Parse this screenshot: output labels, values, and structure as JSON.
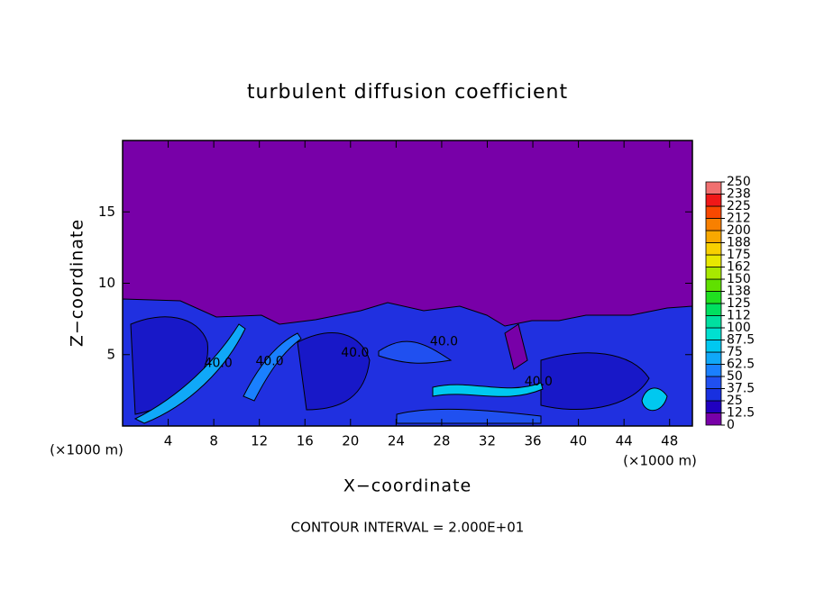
{
  "chart_data": {
    "type": "contour",
    "title": "turbulent diffusion coefficient",
    "x_label": "X−coordinate",
    "y_label": "Z−coordinate",
    "x_unit_left": "(×1000 m)",
    "x_unit_right": "(×1000 m)",
    "footer": "CONTOUR INTERVAL = 2.000E+01",
    "xlim": [
      0,
      50
    ],
    "ylim": [
      0,
      20
    ],
    "xticks": [
      4,
      8,
      12,
      16,
      20,
      24,
      28,
      32,
      36,
      40,
      44,
      48
    ],
    "yticks": [
      5,
      10,
      15
    ],
    "annotations": [
      {
        "text": "40.0",
        "x": 8.4,
        "y": 4.4
      },
      {
        "text": "40.0",
        "x": 12.9,
        "y": 4.5
      },
      {
        "text": "40.0",
        "x": 20.4,
        "y": 5.1
      },
      {
        "text": "40.0",
        "x": 28.2,
        "y": 5.9
      },
      {
        "text": "40.0",
        "x": 36.5,
        "y": 3.1
      }
    ],
    "colorbar": {
      "levels": [
        0,
        12.5,
        25,
        37.5,
        50,
        62.5,
        75,
        87.5,
        100,
        {
          "value": 112.5,
          "label": "112"
        },
        125,
        {
          "value": 137.5,
          "label": "138"
        },
        150,
        {
          "value": 162.5,
          "label": "162"
        },
        175,
        {
          "value": 187.5,
          "label": "188"
        },
        200,
        {
          "value": 212.5,
          "label": "212"
        },
        225,
        {
          "value": 237.5,
          "label": "238"
        },
        250
      ],
      "colors": [
        "#7800a8",
        "#2000c0",
        "#1830e0",
        "#2050f0",
        "#1a80ff",
        "#10a8f8",
        "#00c8f0",
        "#00e0d0",
        "#00e0a0",
        "#00e060",
        "#20e020",
        "#60e000",
        "#a8e800",
        "#e8e800",
        "#f8d000",
        "#f8a800",
        "#f88000",
        "#f84800",
        "#f01818",
        "#f07070"
      ]
    }
  }
}
